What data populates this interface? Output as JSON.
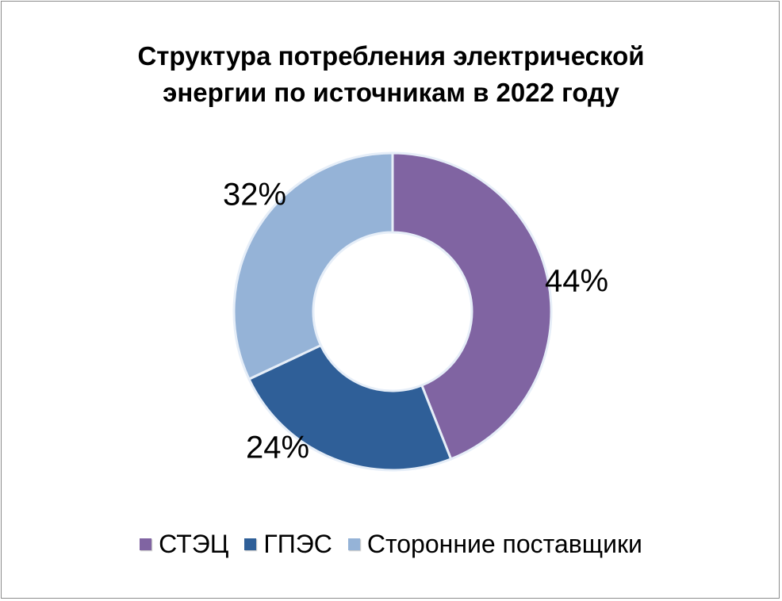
{
  "chart_data": {
    "type": "pie",
    "variant": "doughnut",
    "title_lines": [
      "Структура потребления электрической",
      "энергии по источникам в 2022 году"
    ],
    "categories": [
      "СТЭЦ",
      "ГПЭС",
      "Сторонние поставщики"
    ],
    "values": [
      44,
      24,
      32
    ],
    "value_labels": [
      "44%",
      "24%",
      "32%"
    ],
    "colors": [
      "#8064a2",
      "#2f5f98",
      "#95b3d7"
    ],
    "legend_position": "bottom"
  }
}
